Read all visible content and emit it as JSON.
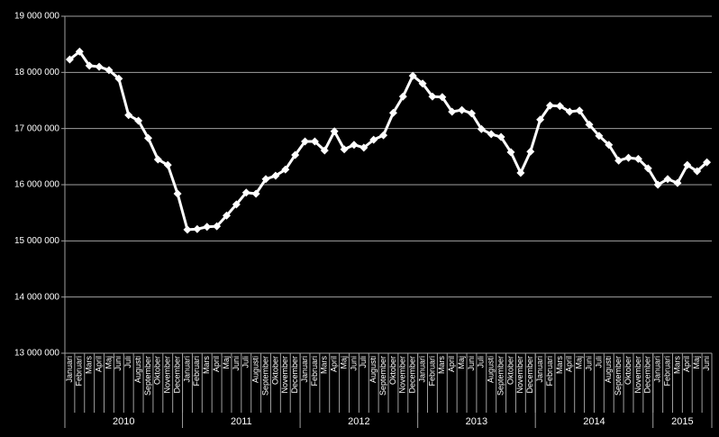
{
  "chart_data": {
    "type": "line",
    "color": "#ffffff",
    "grid": true,
    "ylim": [
      13000000,
      19000000
    ],
    "yticks": [
      {
        "value": 13000000,
        "label": "13 000 000"
      },
      {
        "value": 14000000,
        "label": "14 000 000"
      },
      {
        "value": 15000000,
        "label": "15 000 000"
      },
      {
        "value": 16000000,
        "label": "16 000 000"
      },
      {
        "value": 17000000,
        "label": "17 000 000"
      },
      {
        "value": 18000000,
        "label": "18 000 000"
      },
      {
        "value": 19000000,
        "label": "19 000 000"
      }
    ],
    "years": [
      "2010",
      "2011",
      "2012",
      "2013",
      "2014",
      "2015"
    ],
    "categories": [
      "Januari",
      "Februari",
      "Mars",
      "April",
      "Maj",
      "Juni",
      "Juli",
      "Augusti",
      "September",
      "Oktober",
      "November",
      "December",
      "Januari",
      "Februari",
      "Mars",
      "April",
      "Maj",
      "Juni",
      "Juli",
      "Augusti",
      "September",
      "Oktober",
      "November",
      "December",
      "Januari",
      "Februari",
      "Mars",
      "April",
      "Maj",
      "Juni",
      "Juli",
      "Augusti",
      "September",
      "Oktober",
      "November",
      "December",
      "Januari",
      "Februari",
      "Mars",
      "April",
      "Maj",
      "Juni",
      "Juli",
      "Augusti",
      "September",
      "Oktober",
      "November",
      "December",
      "Januari",
      "Februari",
      "Mars",
      "April",
      "Maj",
      "Juni",
      "Juli",
      "Augusti",
      "September",
      "Oktober",
      "November",
      "December",
      "Januari",
      "Februari",
      "Mars",
      "April",
      "Maj",
      "Juni"
    ],
    "values": [
      18230000,
      18370000,
      18120000,
      18100000,
      18040000,
      17890000,
      17240000,
      17140000,
      16830000,
      16450000,
      16350000,
      15840000,
      15200000,
      15210000,
      15250000,
      15260000,
      15450000,
      15650000,
      15860000,
      15840000,
      16100000,
      16160000,
      16270000,
      16530000,
      16770000,
      16770000,
      16610000,
      16950000,
      16630000,
      16710000,
      16660000,
      16800000,
      16880000,
      17280000,
      17570000,
      17940000,
      17800000,
      17570000,
      17560000,
      17300000,
      17330000,
      17270000,
      16990000,
      16900000,
      16850000,
      16580000,
      16210000,
      16590000,
      17160000,
      17410000,
      17400000,
      17300000,
      17320000,
      17070000,
      16870000,
      16710000,
      16430000,
      16480000,
      16460000,
      16290000,
      16000000,
      16100000,
      16030000,
      16350000,
      16240000,
      16400000
    ]
  }
}
